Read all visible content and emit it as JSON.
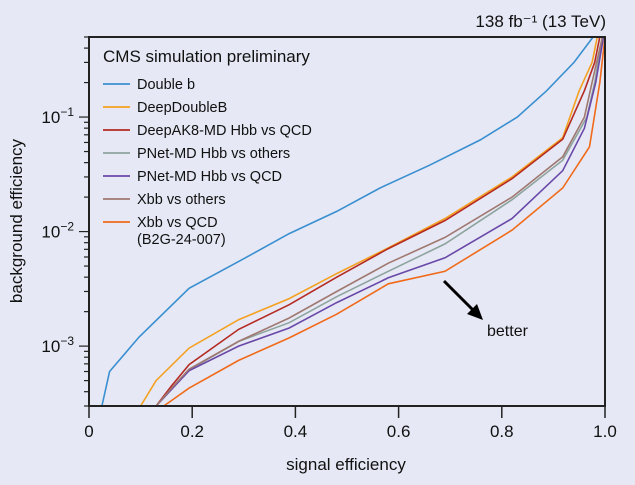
{
  "chart_data": {
    "type": "line",
    "title": "CMS simulation preliminary",
    "top_right_label": "138 fb⁻¹ (13 TeV)",
    "xlabel": "signal efficiency",
    "ylabel": "background efficiency",
    "xlim": [
      0,
      1.0
    ],
    "ylim": [
      0.0003,
      0.5
    ],
    "yscale": "log",
    "grid": false,
    "legend_placement": "top-left",
    "x_ticks": [
      "0",
      "0.2",
      "0.4",
      "0.6",
      "0.8",
      "1.0"
    ],
    "y_ticks": [
      {
        "value": 0.001,
        "label": "10",
        "exp": "-3"
      },
      {
        "value": 0.01,
        "label": "10",
        "exp": "-2"
      },
      {
        "value": 0.1,
        "label": "10",
        "exp": "-1"
      }
    ],
    "annotation": {
      "text": "better",
      "arrow": "pointing down-right"
    },
    "series": [
      {
        "name": "Double b",
        "color": "#3a8fd0",
        "points": [
          [
            0.025,
            0.0003
          ],
          [
            0.04,
            0.0006
          ],
          [
            0.097,
            0.0012
          ],
          [
            0.194,
            0.0032
          ],
          [
            0.3,
            0.0058
          ],
          [
            0.388,
            0.0096
          ],
          [
            0.48,
            0.015
          ],
          [
            0.564,
            0.024
          ],
          [
            0.66,
            0.038
          ],
          [
            0.758,
            0.063
          ],
          [
            0.83,
            0.1
          ],
          [
            0.887,
            0.17
          ],
          [
            0.94,
            0.3
          ],
          [
            0.977,
            0.5
          ]
        ]
      },
      {
        "name": "DeepDoubleB",
        "color": "#f5a020",
        "points": [
          [
            0.1,
            0.0003
          ],
          [
            0.13,
            0.0005
          ],
          [
            0.194,
            0.00096
          ],
          [
            0.29,
            0.0017
          ],
          [
            0.388,
            0.0026
          ],
          [
            0.48,
            0.0043
          ],
          [
            0.58,
            0.0072
          ],
          [
            0.69,
            0.013
          ],
          [
            0.82,
            0.03
          ],
          [
            0.918,
            0.066
          ],
          [
            0.95,
            0.17
          ],
          [
            0.975,
            0.3
          ],
          [
            0.985,
            0.5
          ]
        ]
      },
      {
        "name": "DeepAK8-MD Hbb vs QCD",
        "color": "#b52a22",
        "points": [
          [
            0.13,
            0.0003
          ],
          [
            0.16,
            0.00045
          ],
          [
            0.194,
            0.00069
          ],
          [
            0.29,
            0.0014
          ],
          [
            0.388,
            0.0023
          ],
          [
            0.48,
            0.004
          ],
          [
            0.58,
            0.0071
          ],
          [
            0.69,
            0.0125
          ],
          [
            0.82,
            0.029
          ],
          [
            0.918,
            0.064
          ],
          [
            0.96,
            0.17
          ],
          [
            0.98,
            0.3
          ],
          [
            0.99,
            0.5
          ]
        ]
      },
      {
        "name": "PNet-MD Hbb vs others",
        "color": "#8ea39e",
        "points": [
          [
            0.13,
            0.0003
          ],
          [
            0.16,
            0.00042
          ],
          [
            0.194,
            0.00062
          ],
          [
            0.29,
            0.0011
          ],
          [
            0.388,
            0.0016
          ],
          [
            0.48,
            0.0027
          ],
          [
            0.58,
            0.0045
          ],
          [
            0.69,
            0.0078
          ],
          [
            0.82,
            0.019
          ],
          [
            0.918,
            0.042
          ],
          [
            0.965,
            0.1
          ],
          [
            0.98,
            0.2
          ],
          [
            0.995,
            0.5
          ]
        ]
      },
      {
        "name": "PNet-MD Hbb vs QCD",
        "color": "#6a48a8",
        "points": [
          [
            0.13,
            0.0003
          ],
          [
            0.16,
            0.00042
          ],
          [
            0.194,
            0.00061
          ],
          [
            0.29,
            0.001
          ],
          [
            0.388,
            0.00144
          ],
          [
            0.48,
            0.0024
          ],
          [
            0.58,
            0.00395
          ],
          [
            0.69,
            0.0059
          ],
          [
            0.82,
            0.013
          ],
          [
            0.918,
            0.034
          ],
          [
            0.96,
            0.08
          ],
          [
            0.982,
            0.2
          ],
          [
            0.997,
            0.5
          ]
        ]
      },
      {
        "name": "Xbb vs others",
        "color": "#a07870",
        "points": [
          [
            0.13,
            0.0003
          ],
          [
            0.16,
            0.00043
          ],
          [
            0.194,
            0.00063
          ],
          [
            0.29,
            0.0011
          ],
          [
            0.388,
            0.00176
          ],
          [
            0.48,
            0.003
          ],
          [
            0.58,
            0.0053
          ],
          [
            0.69,
            0.0089
          ],
          [
            0.82,
            0.02
          ],
          [
            0.918,
            0.045
          ],
          [
            0.96,
            0.1
          ],
          [
            0.976,
            0.21
          ],
          [
            0.995,
            0.5
          ]
        ]
      },
      {
        "name": "Xbb vs QCD\n(B2G-24-007)",
        "name_lines": [
          "Xbb vs QCD",
          "(B2G-24-007)"
        ],
        "color": "#f06a1a",
        "points": [
          [
            0.145,
            0.0003
          ],
          [
            0.17,
            0.00036
          ],
          [
            0.194,
            0.00043
          ],
          [
            0.29,
            0.00075
          ],
          [
            0.388,
            0.00118
          ],
          [
            0.48,
            0.0019
          ],
          [
            0.58,
            0.0035
          ],
          [
            0.69,
            0.0045
          ],
          [
            0.82,
            0.0103
          ],
          [
            0.918,
            0.024
          ],
          [
            0.97,
            0.055
          ],
          [
            0.99,
            0.2
          ],
          [
            1.0,
            0.5
          ]
        ]
      }
    ]
  }
}
